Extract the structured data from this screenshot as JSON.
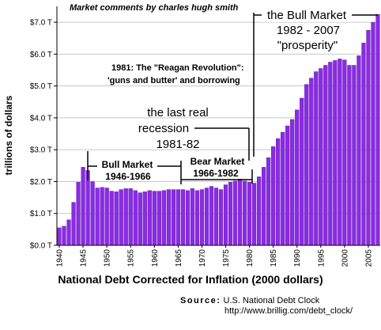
{
  "credit": "Market comments by charles hugh smith",
  "source": {
    "label": "Source:",
    "text": "U.S. National Debt Clock",
    "url": "http://www.brillig.com/debt_clock/"
  },
  "colors": {
    "bar": "#8a2be2",
    "bar_edge": "#5a10b0",
    "grid": "#c8c8c8",
    "annotation": "#000000"
  },
  "chart_data": {
    "type": "bar",
    "title": "",
    "xlabel": "National Debt Corrected for Inflation (2000 dollars)",
    "ylabel": "trillions of dollars",
    "ylim": [
      0,
      7.5
    ],
    "grid": true,
    "yticks": [
      0,
      1,
      2,
      3,
      4,
      5,
      6,
      7
    ],
    "ytick_labels": [
      "$0.0 T",
      "$1.0 T",
      "$2.0 T",
      "$3.0 T",
      "$4.0 T",
      "$5.0 T",
      "$6.0 T",
      "$7.0 T"
    ],
    "xtick_labels": [
      "1940",
      "1945",
      "1950",
      "1955",
      "1960",
      "1965",
      "1970",
      "1975",
      "1980",
      "1985",
      "1990",
      "1995",
      "2000",
      "2005"
    ],
    "xtick_years": [
      1940,
      1945,
      1950,
      1955,
      1960,
      1965,
      1970,
      1975,
      1980,
      1985,
      1990,
      1995,
      2000,
      2005
    ],
    "categories": [
      1940,
      1941,
      1942,
      1943,
      1944,
      1945,
      1946,
      1947,
      1948,
      1949,
      1950,
      1951,
      1952,
      1953,
      1954,
      1955,
      1956,
      1957,
      1958,
      1959,
      1960,
      1961,
      1962,
      1963,
      1964,
      1965,
      1966,
      1967,
      1968,
      1969,
      1970,
      1971,
      1972,
      1973,
      1974,
      1975,
      1976,
      1977,
      1978,
      1979,
      1980,
      1981,
      1982,
      1983,
      1984,
      1985,
      1986,
      1987,
      1988,
      1989,
      1990,
      1991,
      1992,
      1993,
      1994,
      1995,
      1996,
      1997,
      1998,
      1999,
      2000,
      2001,
      2002,
      2003,
      2004,
      2005,
      2006,
      2007
    ],
    "values": [
      0.55,
      0.6,
      0.8,
      1.35,
      1.98,
      2.45,
      2.35,
      2.0,
      1.8,
      1.82,
      1.8,
      1.7,
      1.68,
      1.75,
      1.78,
      1.78,
      1.72,
      1.65,
      1.68,
      1.72,
      1.7,
      1.7,
      1.72,
      1.75,
      1.75,
      1.75,
      1.75,
      1.72,
      1.78,
      1.72,
      1.75,
      1.8,
      1.85,
      1.8,
      1.75,
      1.9,
      1.98,
      2.02,
      2.08,
      2.02,
      1.98,
      1.95,
      2.15,
      2.45,
      2.75,
      3.1,
      3.35,
      3.55,
      3.75,
      3.95,
      4.25,
      4.62,
      5.05,
      5.25,
      5.45,
      5.55,
      5.65,
      5.75,
      5.8,
      5.85,
      5.82,
      5.65,
      5.65,
      5.95,
      6.35,
      6.75,
      7.0,
      7.25
    ],
    "annotations": {
      "bull_market_1": {
        "title": "Bull Market",
        "years": "1946-1966"
      },
      "bear_market": {
        "title": "Bear Market",
        "years": "1966-1982"
      },
      "last_recession": {
        "line1": "the last real",
        "line2": "recession",
        "line3": "1981-82"
      },
      "reagan": {
        "line1": "1981: The \"Reagan Revolution\":",
        "line2": "'guns and butter' and borrowing"
      },
      "bull_market_2": {
        "line1": "the Bull Market",
        "line2": "1982 - 2007",
        "line3": "\"prosperity\""
      }
    }
  }
}
